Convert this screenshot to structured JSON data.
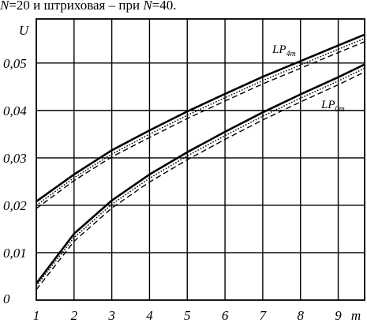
{
  "caption": {
    "prefix_italic": "N",
    "part1": "=20 и штриховая – при ",
    "mid_italic": "N",
    "part2": "=40."
  },
  "chart_data": {
    "type": "line",
    "xlabel": "m",
    "ylabel": "U",
    "x_ticks": [
      "1",
      "2",
      "3",
      "4",
      "5",
      "6",
      "7",
      "8",
      "9"
    ],
    "y_ticks": [
      "0",
      "0,01",
      "0,02",
      "0,03",
      "0,04",
      "0,05"
    ],
    "xlim": [
      1,
      9.7
    ],
    "ylim": [
      0,
      0.0593
    ],
    "grid": true,
    "x": [
      1,
      2,
      3,
      4,
      5,
      6,
      7,
      8,
      9,
      9.7
    ],
    "series": [
      {
        "name": "LP4m",
        "label_main": "LP",
        "label_sub": "4m",
        "style": "solid",
        "values": [
          0.0208,
          0.0265,
          0.0316,
          0.0358,
          0.0398,
          0.0435,
          0.0471,
          0.0504,
          0.0537,
          0.056
        ]
      },
      {
        "style": "dotted",
        "values": [
          0.02,
          0.0258,
          0.0308,
          0.035,
          0.039,
          0.0427,
          0.0463,
          0.0496,
          0.0529,
          0.0552
        ]
      },
      {
        "style": "dashed",
        "values": [
          0.0193,
          0.0252,
          0.0302,
          0.0343,
          0.0383,
          0.042,
          0.0456,
          0.0489,
          0.0522,
          0.0545
        ]
      },
      {
        "name": "LP0m",
        "label_main": "LP",
        "label_sub": "0m",
        "style": "solid",
        "values": [
          0.0035,
          0.014,
          0.021,
          0.0265,
          0.0312,
          0.0355,
          0.0396,
          0.0434,
          0.047,
          0.0497
        ]
      },
      {
        "style": "dotted",
        "values": [
          0.003,
          0.0132,
          0.0202,
          0.0257,
          0.0304,
          0.0347,
          0.0388,
          0.0426,
          0.0462,
          0.0489
        ]
      },
      {
        "style": "dashed",
        "values": [
          0.0022,
          0.0124,
          0.0194,
          0.0249,
          0.0296,
          0.0339,
          0.038,
          0.0418,
          0.0454,
          0.0481
        ]
      }
    ]
  }
}
